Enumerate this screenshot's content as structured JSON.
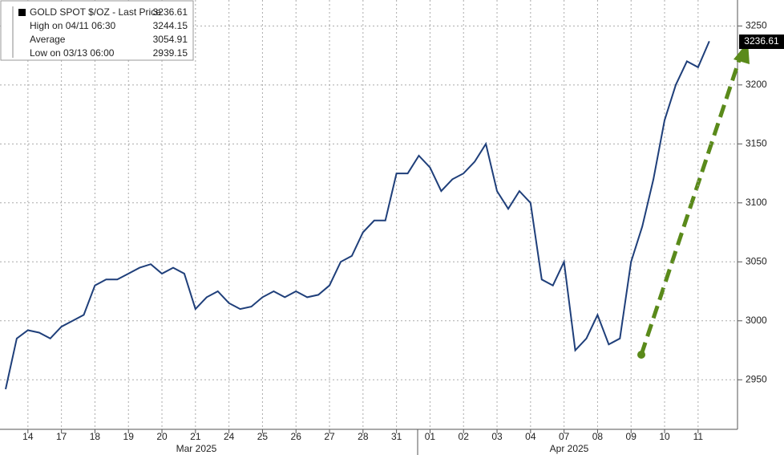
{
  "chart_data": {
    "type": "line",
    "legend": {
      "title": "GOLD SPOT $/OZ - Last Price",
      "last": 3236.61,
      "rows": [
        {
          "label": "High on 04/11 06:30",
          "value": 3244.15
        },
        {
          "label": "Average",
          "value": 3054.91
        },
        {
          "label": "Low on 03/13 06:00",
          "value": 2939.15
        }
      ]
    },
    "categories": [
      null,
      null,
      "14",
      null,
      null,
      "17",
      null,
      null,
      "18",
      null,
      null,
      "19",
      null,
      null,
      "20",
      null,
      null,
      "21",
      null,
      null,
      "24",
      null,
      null,
      "25",
      null,
      null,
      "26",
      null,
      null,
      "27",
      null,
      null,
      "28",
      null,
      null,
      "31",
      null,
      null,
      "01",
      null,
      null,
      "02",
      null,
      null,
      "03",
      null,
      null,
      "04",
      null,
      null,
      "07",
      null,
      null,
      "08",
      null,
      null,
      "09",
      null,
      null,
      "10",
      null,
      null,
      "11",
      null
    ],
    "x_groups": [
      "Mar 2025",
      "Apr 2025"
    ],
    "series": [
      {
        "name": "GOLD SPOT $/OZ",
        "color": "#1f3f7a",
        "values": [
          2942,
          2985,
          2992,
          2990,
          2985,
          2995,
          3000,
          3005,
          3030,
          3035,
          3035,
          3040,
          3045,
          3048,
          3040,
          3045,
          3040,
          3010,
          3020,
          3025,
          3015,
          3010,
          3012,
          3020,
          3025,
          3020,
          3025,
          3020,
          3022,
          3030,
          3050,
          3055,
          3075,
          3085,
          3085,
          3125,
          3125,
          3140,
          3130,
          3110,
          3120,
          3125,
          3135,
          3150,
          3110,
          3095,
          3110,
          3100,
          3035,
          3030,
          3050,
          2975,
          2985,
          3005,
          2980,
          2985,
          3050,
          3080,
          3120,
          3170,
          3200,
          3220,
          3215,
          3237
        ]
      }
    ],
    "ylim": [
      2908,
      3272
    ],
    "yticks": [
      2950,
      3000,
      3050,
      3100,
      3150,
      3200,
      3250
    ],
    "grid": true
  }
}
